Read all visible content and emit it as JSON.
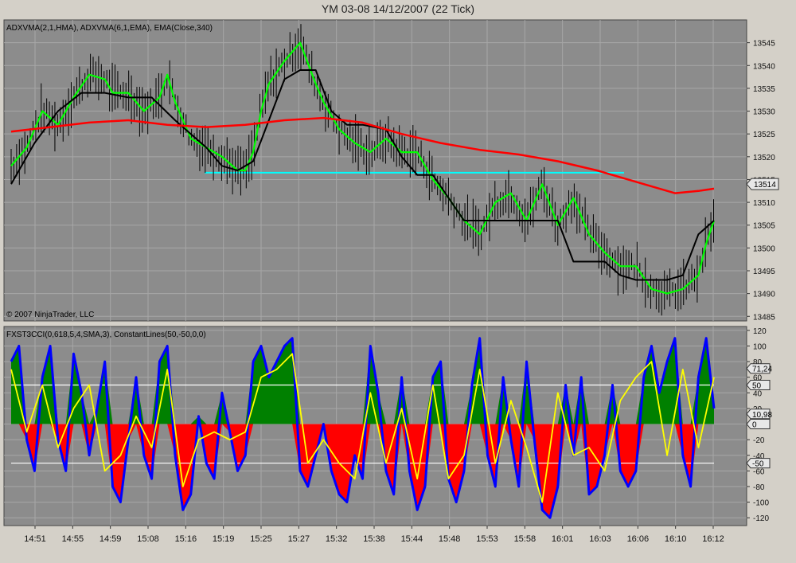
{
  "window": {
    "title": "YM 03-08  14/12/2007  (22 Tick)"
  },
  "colors": {
    "panel_bg": "#8c8c8c",
    "grid": "#a7a7a7",
    "price_bars": "#000000",
    "hma_line": "#00ff00",
    "ema_slow_line": "#000000",
    "ema340_line": "#ff0000",
    "support_line": "#00ffff",
    "cci_raw": "#0000ff",
    "cci_signal": "#ffff00",
    "cci_pos_fill": "#008000",
    "cci_neg_fill": "#ff0000",
    "constant_lines": "#ffffff"
  },
  "chart_data": [
    {
      "type": "line",
      "panel": "price",
      "indicator_label": "ADXVMA(2,1,HMA), ADXVMA(6,1,EMA), EMA(Close,340)",
      "copyright": "© 2007 NinjaTrader, LLC",
      "ylim": [
        13484,
        13550
      ],
      "y_ticks": [
        13485,
        13490,
        13495,
        13500,
        13505,
        13510,
        13515,
        13520,
        13525,
        13530,
        13535,
        13540,
        13545
      ],
      "x_tick_labels": [
        "14:51",
        "14:55",
        "14:59",
        "15:08",
        "15:16",
        "15:19",
        "15:25",
        "15:27",
        "15:32",
        "15:38",
        "15:44",
        "15:48",
        "15:53",
        "15:58",
        "16:01",
        "16:03",
        "16:06",
        "16:10",
        "16:12"
      ],
      "last_price_label": "13514",
      "horizontal_line": 13516.5,
      "series": [
        {
          "name": "ADXVMA(2,1,HMA)",
          "x": [
            0,
            4,
            8,
            12,
            16,
            20,
            24,
            26,
            30,
            34,
            38,
            40,
            42,
            46,
            50,
            54,
            58,
            60,
            62,
            64,
            66,
            70,
            74,
            78,
            80,
            84,
            88,
            92,
            96,
            100,
            104,
            108,
            112,
            116,
            120,
            124,
            128,
            132,
            136,
            140,
            144,
            148,
            152,
            156,
            160,
            164,
            168,
            172,
            176,
            178,
            180
          ],
          "values": [
            13518,
            13522,
            13530,
            13527,
            13533,
            13538,
            13537,
            13534,
            13534,
            13530,
            13533,
            13538,
            13532,
            13524,
            13522,
            13520,
            13517,
            13517,
            13521,
            13530,
            13536,
            13541,
            13545,
            13536,
            13532,
            13526,
            13523,
            13521,
            13524,
            13521,
            13521,
            13515,
            13511,
            13506,
            13503,
            13510,
            13512,
            13506,
            13514,
            13505,
            13511,
            13503,
            13499,
            13496,
            13496,
            13491,
            13490,
            13491,
            13494,
            13501,
            13506
          ]
        },
        {
          "name": "ADXVMA(6,1,EMA)",
          "x": [
            0,
            6,
            12,
            18,
            24,
            30,
            36,
            42,
            46,
            50,
            54,
            58,
            62,
            66,
            70,
            74,
            78,
            82,
            86,
            90,
            96,
            100,
            104,
            108,
            112,
            116,
            120,
            124,
            128,
            132,
            136,
            140,
            144,
            148,
            152,
            156,
            160,
            164,
            168,
            172,
            176,
            180
          ],
          "values": [
            13514,
            13523,
            13530,
            13534,
            13534,
            13533,
            13533,
            13528,
            13525,
            13522,
            13518,
            13517,
            13519,
            13528,
            13537,
            13539,
            13539,
            13530,
            13527,
            13527,
            13526,
            13520,
            13516,
            13516,
            13511,
            13506,
            13506,
            13506,
            13506,
            13506,
            13506,
            13506,
            13497,
            13497,
            13497,
            13494,
            13493,
            13493,
            13493,
            13494,
            13503,
            13506
          ]
        },
        {
          "name": "EMA(Close,340)",
          "x": [
            0,
            10,
            20,
            30,
            40,
            50,
            60,
            70,
            80,
            90,
            100,
            110,
            120,
            130,
            140,
            150,
            160,
            170,
            176,
            180
          ],
          "values": [
            13525.5,
            13526.5,
            13527.5,
            13528,
            13527,
            13526.5,
            13527,
            13528,
            13528.5,
            13527.5,
            13525,
            13523,
            13521.5,
            13520.5,
            13519,
            13517,
            13514.5,
            13512,
            13512.5,
            13513
          ]
        }
      ]
    },
    {
      "type": "area",
      "panel": "oscillator",
      "indicator_label": "FXST3CCI(0,618,5,4,SMA,3), ConstantLines(50,-50,0,0)",
      "ylim": [
        -130,
        125
      ],
      "y_ticks": [
        120,
        100,
        80,
        60,
        40,
        20,
        0,
        -20,
        -40,
        -60,
        -80,
        -100,
        -120
      ],
      "constant_lines": [
        50,
        -50
      ],
      "value_labels": [
        "71,24",
        "10,98",
        "50",
        "0",
        "-50"
      ],
      "series": [
        {
          "name": "FXST3CCI",
          "x": [
            0,
            2,
            4,
            6,
            8,
            10,
            12,
            14,
            16,
            18,
            20,
            22,
            24,
            26,
            28,
            30,
            32,
            34,
            36,
            38,
            40,
            42,
            44,
            46,
            48,
            50,
            52,
            54,
            56,
            58,
            60,
            62,
            64,
            66,
            68,
            70,
            72,
            74,
            76,
            78,
            80,
            82,
            84,
            86,
            88,
            90,
            92,
            94,
            96,
            98,
            100,
            102,
            104,
            106,
            108,
            110,
            112,
            114,
            116,
            118,
            120,
            122,
            124,
            126,
            128,
            130,
            132,
            134,
            136,
            138,
            140,
            142,
            144,
            146,
            148,
            150,
            152,
            154,
            156,
            158,
            160,
            162,
            164,
            166,
            168,
            170,
            172,
            174,
            176,
            178,
            180
          ],
          "values": [
            80,
            100,
            -20,
            -60,
            60,
            100,
            -20,
            -60,
            90,
            40,
            -40,
            20,
            80,
            -80,
            -100,
            -20,
            60,
            -40,
            -70,
            80,
            100,
            -40,
            -110,
            -90,
            10,
            -50,
            -70,
            40,
            -10,
            -60,
            -40,
            80,
            100,
            60,
            80,
            100,
            110,
            -60,
            -80,
            -40,
            0,
            -60,
            -90,
            -100,
            -40,
            -70,
            100,
            40,
            -60,
            -90,
            60,
            -60,
            -110,
            -80,
            60,
            80,
            -70,
            -100,
            -60,
            50,
            110,
            -40,
            -80,
            60,
            -20,
            -80,
            80,
            -20,
            -110,
            -120,
            -80,
            50,
            -40,
            60,
            -90,
            -80,
            -40,
            50,
            -60,
            -80,
            -60,
            60,
            100,
            40,
            80,
            110,
            -40,
            -80,
            60,
            110,
            20
          ]
        },
        {
          "name": "Signal",
          "x": [
            0,
            4,
            8,
            12,
            16,
            20,
            24,
            28,
            32,
            36,
            40,
            44,
            48,
            52,
            56,
            60,
            64,
            68,
            72,
            76,
            80,
            84,
            88,
            92,
            96,
            100,
            104,
            108,
            112,
            116,
            120,
            124,
            128,
            132,
            136,
            140,
            144,
            148,
            152,
            156,
            160,
            164,
            168,
            172,
            176,
            180
          ],
          "values": [
            70,
            -10,
            50,
            -30,
            20,
            50,
            -60,
            -40,
            10,
            -30,
            70,
            -80,
            -20,
            -10,
            -20,
            -10,
            60,
            70,
            90,
            -50,
            -20,
            -50,
            -70,
            40,
            -50,
            20,
            -70,
            50,
            -70,
            -40,
            70,
            -50,
            30,
            -30,
            -100,
            40,
            -40,
            -30,
            -60,
            30,
            60,
            80,
            -40,
            70,
            -30,
            60
          ]
        }
      ]
    }
  ]
}
